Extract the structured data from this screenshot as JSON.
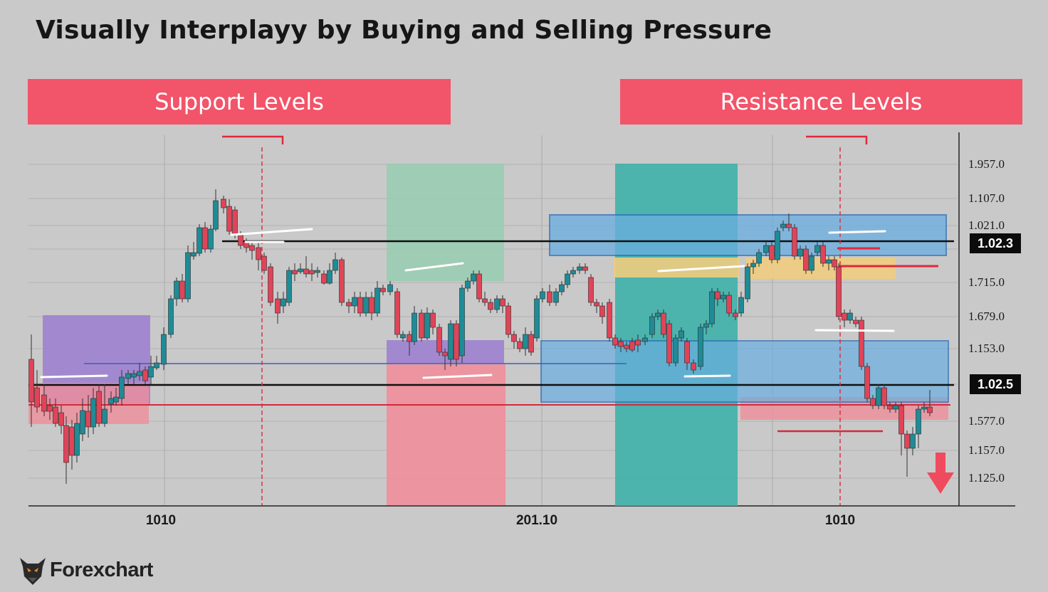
{
  "title": "Visually Interplayy by  Buying and Selling Pressure",
  "banners": {
    "support": "Support  Levels",
    "resistance": "Resistance Levels"
  },
  "logo": {
    "text": "Forexchart",
    "icon": "bull-head-icon"
  },
  "colors": {
    "background": "#c9c9c9",
    "banner": "#f2546a",
    "bull_candle": "#1e8c96",
    "bear_candle": "#e04458",
    "zone_purple": "#9b7ed0",
    "zone_pink": "#ef8e9a",
    "zone_green": "#98ccb0",
    "zone_teal": "#3fb0aa",
    "zone_blue": "#6aaee0",
    "zone_yellow": "#f0cc7e"
  },
  "chart_data": {
    "type": "candlestick",
    "x_ticks": [
      "1010",
      "201.10",
      "1010"
    ],
    "y_ticks": [
      "1.957.0",
      "1.107.0",
      "1.021.0",
      "1.715.0",
      "1.679.0",
      "1.153.0",
      "1.577.0",
      "1.157.0",
      "1.125.0"
    ],
    "price_badges": [
      "1.02.3",
      "1.02.5"
    ],
    "annotations": [
      "down-arrow-icon"
    ]
  }
}
